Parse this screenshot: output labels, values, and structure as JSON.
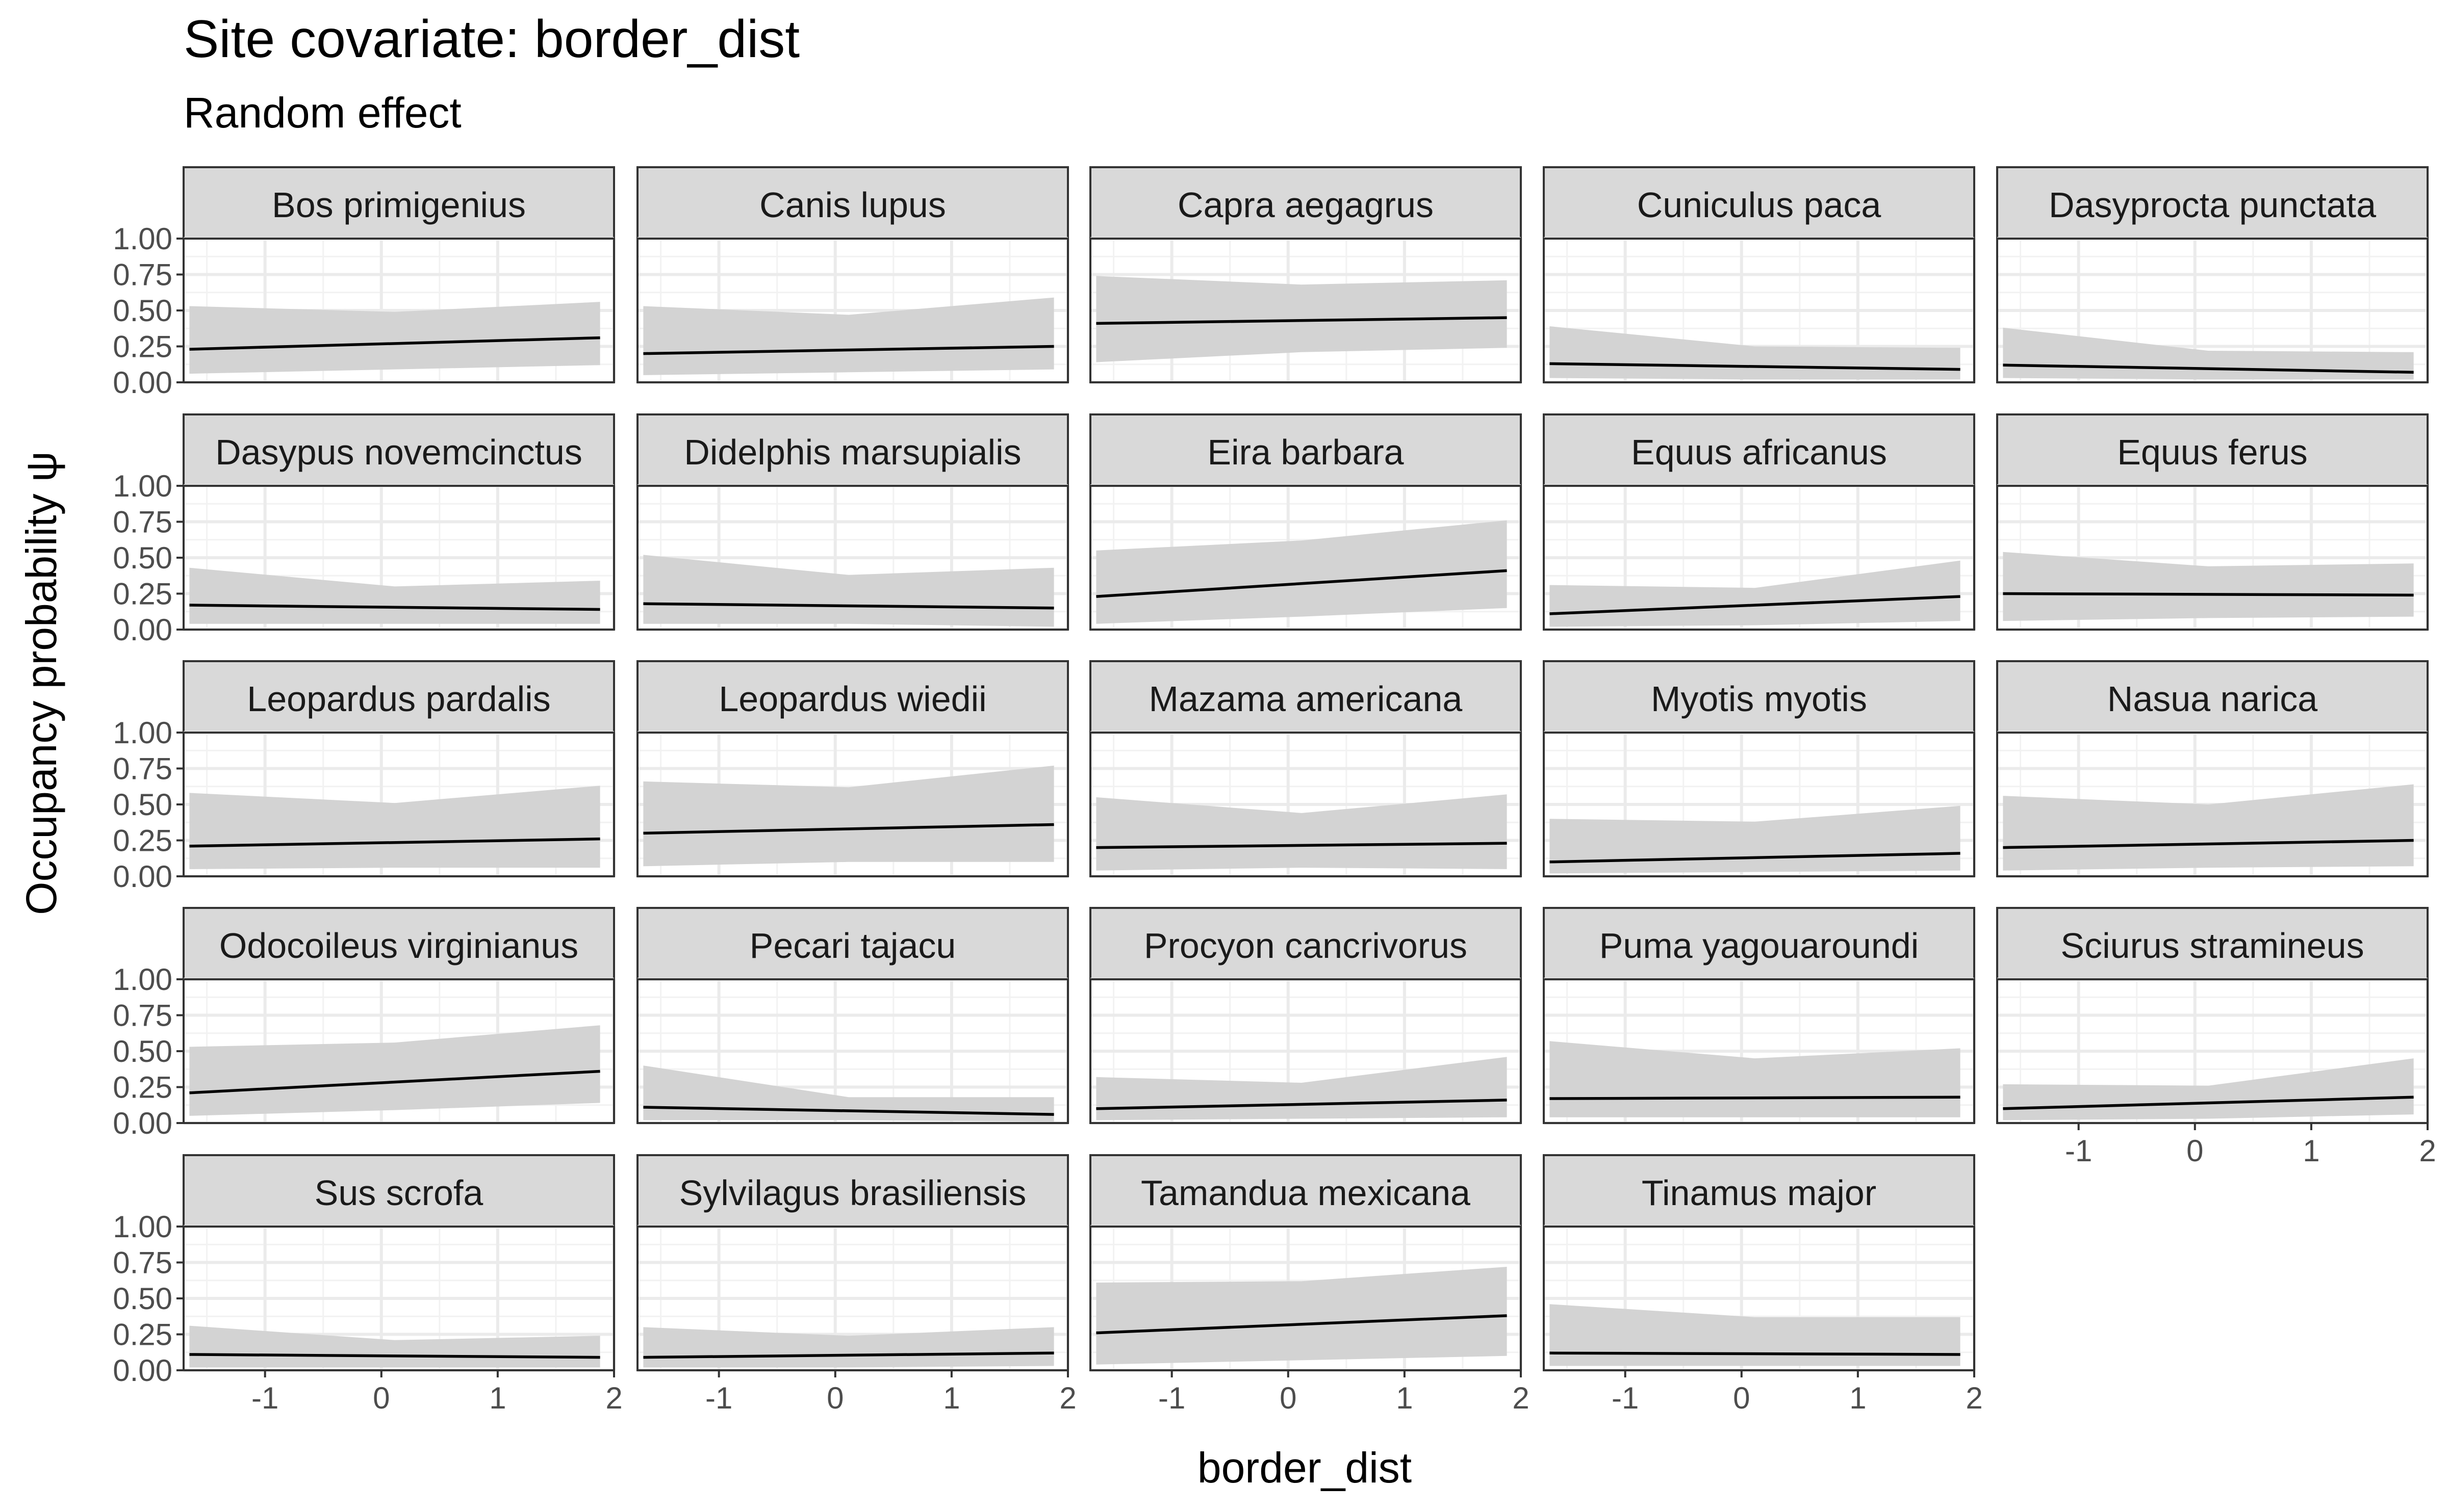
{
  "chart_data": {
    "type": "line",
    "title": "Site covariate: border_dist",
    "subtitle": "Random effect",
    "xlabel": "border_dist",
    "ylabel": "Occupancy probability  ψ",
    "xlim": [
      -1.7,
      2.0
    ],
    "ylim": [
      0,
      1
    ],
    "x_ticks": [
      -1,
      0,
      1,
      2
    ],
    "x_tick_labels": [
      "-1",
      "0",
      "1",
      "2"
    ],
    "y_ticks": [
      0,
      0.25,
      0.5,
      0.75,
      1
    ],
    "y_tick_labels": [
      "0.00",
      "0.25",
      "0.50",
      "0.75",
      "1.00"
    ],
    "x": [
      -1.65,
      1.88
    ],
    "grid": true,
    "legend": "none",
    "line_color": "#000000",
    "ribbon_color": "#d3d3d3",
    "strip_fill": "#d9d9d9",
    "panels": [
      {
        "name": "Bos primigenius",
        "mean": [
          0.23,
          0.31
        ],
        "lower": [
          0.06,
          0.12
        ],
        "upper": [
          0.53,
          0.56
        ],
        "mid_lower": 0.09,
        "mid_upper": 0.49
      },
      {
        "name": "Canis lupus",
        "mean": [
          0.2,
          0.25
        ],
        "lower": [
          0.05,
          0.09
        ],
        "upper": [
          0.53,
          0.59
        ],
        "mid_lower": 0.07,
        "mid_upper": 0.47
      },
      {
        "name": "Capra aegagrus",
        "mean": [
          0.41,
          0.45
        ],
        "lower": [
          0.14,
          0.24
        ],
        "upper": [
          0.74,
          0.71
        ],
        "mid_lower": 0.21,
        "mid_upper": 0.68
      },
      {
        "name": "Cuniculus paca",
        "mean": [
          0.13,
          0.09
        ],
        "lower": [
          0.03,
          0.02
        ],
        "upper": [
          0.39,
          0.24
        ],
        "mid_lower": 0.02,
        "mid_upper": 0.25
      },
      {
        "name": "Dasyprocta punctata",
        "mean": [
          0.12,
          0.07
        ],
        "lower": [
          0.03,
          0.02
        ],
        "upper": [
          0.38,
          0.21
        ],
        "mid_lower": 0.02,
        "mid_upper": 0.22
      },
      {
        "name": "Dasypus novemcinctus",
        "mean": [
          0.17,
          0.14
        ],
        "lower": [
          0.04,
          0.04
        ],
        "upper": [
          0.43,
          0.34
        ],
        "mid_lower": 0.04,
        "mid_upper": 0.3
      },
      {
        "name": "Didelphis marsupialis",
        "mean": [
          0.18,
          0.15
        ],
        "lower": [
          0.04,
          0.02
        ],
        "upper": [
          0.52,
          0.43
        ],
        "mid_lower": 0.04,
        "mid_upper": 0.38
      },
      {
        "name": "Eira barbara",
        "mean": [
          0.23,
          0.41
        ],
        "lower": [
          0.04,
          0.15
        ],
        "upper": [
          0.55,
          0.76
        ],
        "mid_lower": 0.09,
        "mid_upper": 0.62
      },
      {
        "name": "Equus africanus",
        "mean": [
          0.11,
          0.23
        ],
        "lower": [
          0.02,
          0.06
        ],
        "upper": [
          0.31,
          0.48
        ],
        "mid_lower": 0.03,
        "mid_upper": 0.29
      },
      {
        "name": "Equus ferus",
        "mean": [
          0.25,
          0.24
        ],
        "lower": [
          0.06,
          0.09
        ],
        "upper": [
          0.54,
          0.46
        ],
        "mid_lower": 0.08,
        "mid_upper": 0.44
      },
      {
        "name": "Leopardus pardalis",
        "mean": [
          0.21,
          0.26
        ],
        "lower": [
          0.05,
          0.06
        ],
        "upper": [
          0.58,
          0.63
        ],
        "mid_lower": 0.06,
        "mid_upper": 0.51
      },
      {
        "name": "Leopardus wiedii",
        "mean": [
          0.3,
          0.36
        ],
        "lower": [
          0.07,
          0.1
        ],
        "upper": [
          0.66,
          0.77
        ],
        "mid_lower": 0.1,
        "mid_upper": 0.62
      },
      {
        "name": "Mazama americana",
        "mean": [
          0.2,
          0.23
        ],
        "lower": [
          0.04,
          0.05
        ],
        "upper": [
          0.55,
          0.57
        ],
        "mid_lower": 0.06,
        "mid_upper": 0.44
      },
      {
        "name": "Myotis myotis",
        "mean": [
          0.1,
          0.16
        ],
        "lower": [
          0.02,
          0.04
        ],
        "upper": [
          0.4,
          0.49
        ],
        "mid_lower": 0.03,
        "mid_upper": 0.38
      },
      {
        "name": "Nasua narica",
        "mean": [
          0.2,
          0.25
        ],
        "lower": [
          0.04,
          0.07
        ],
        "upper": [
          0.56,
          0.64
        ],
        "mid_lower": 0.06,
        "mid_upper": 0.5
      },
      {
        "name": "Odocoileus virginianus",
        "mean": [
          0.21,
          0.36
        ],
        "lower": [
          0.05,
          0.14
        ],
        "upper": [
          0.53,
          0.68
        ],
        "mid_lower": 0.09,
        "mid_upper": 0.56
      },
      {
        "name": "Pecari tajacu",
        "mean": [
          0.11,
          0.06
        ],
        "lower": [
          0.02,
          0.01
        ],
        "upper": [
          0.4,
          0.18
        ],
        "mid_lower": 0.02,
        "mid_upper": 0.18
      },
      {
        "name": "Procyon cancrivorus",
        "mean": [
          0.1,
          0.16
        ],
        "lower": [
          0.02,
          0.04
        ],
        "upper": [
          0.32,
          0.46
        ],
        "mid_lower": 0.03,
        "mid_upper": 0.28
      },
      {
        "name": "Puma yagouaroundi",
        "mean": [
          0.17,
          0.18
        ],
        "lower": [
          0.04,
          0.04
        ],
        "upper": [
          0.57,
          0.52
        ],
        "mid_lower": 0.04,
        "mid_upper": 0.45
      },
      {
        "name": "Sciurus stramineus",
        "mean": [
          0.1,
          0.18
        ],
        "lower": [
          0.02,
          0.06
        ],
        "upper": [
          0.27,
          0.45
        ],
        "mid_lower": 0.03,
        "mid_upper": 0.26
      },
      {
        "name": "Sus scrofa",
        "mean": [
          0.11,
          0.09
        ],
        "lower": [
          0.02,
          0.02
        ],
        "upper": [
          0.31,
          0.24
        ],
        "mid_lower": 0.02,
        "mid_upper": 0.21
      },
      {
        "name": "Sylvilagus brasiliensis",
        "mean": [
          0.09,
          0.12
        ],
        "lower": [
          0.02,
          0.03
        ],
        "upper": [
          0.3,
          0.3
        ],
        "mid_lower": 0.02,
        "mid_upper": 0.24
      },
      {
        "name": "Tamandua mexicana",
        "mean": [
          0.26,
          0.38
        ],
        "lower": [
          0.04,
          0.1
        ],
        "upper": [
          0.61,
          0.72
        ],
        "mid_lower": 0.07,
        "mid_upper": 0.62
      },
      {
        "name": "Tinamus major",
        "mean": [
          0.12,
          0.11
        ],
        "lower": [
          0.03,
          0.03
        ],
        "upper": [
          0.46,
          0.37
        ],
        "mid_lower": 0.03,
        "mid_upper": 0.37
      }
    ]
  }
}
